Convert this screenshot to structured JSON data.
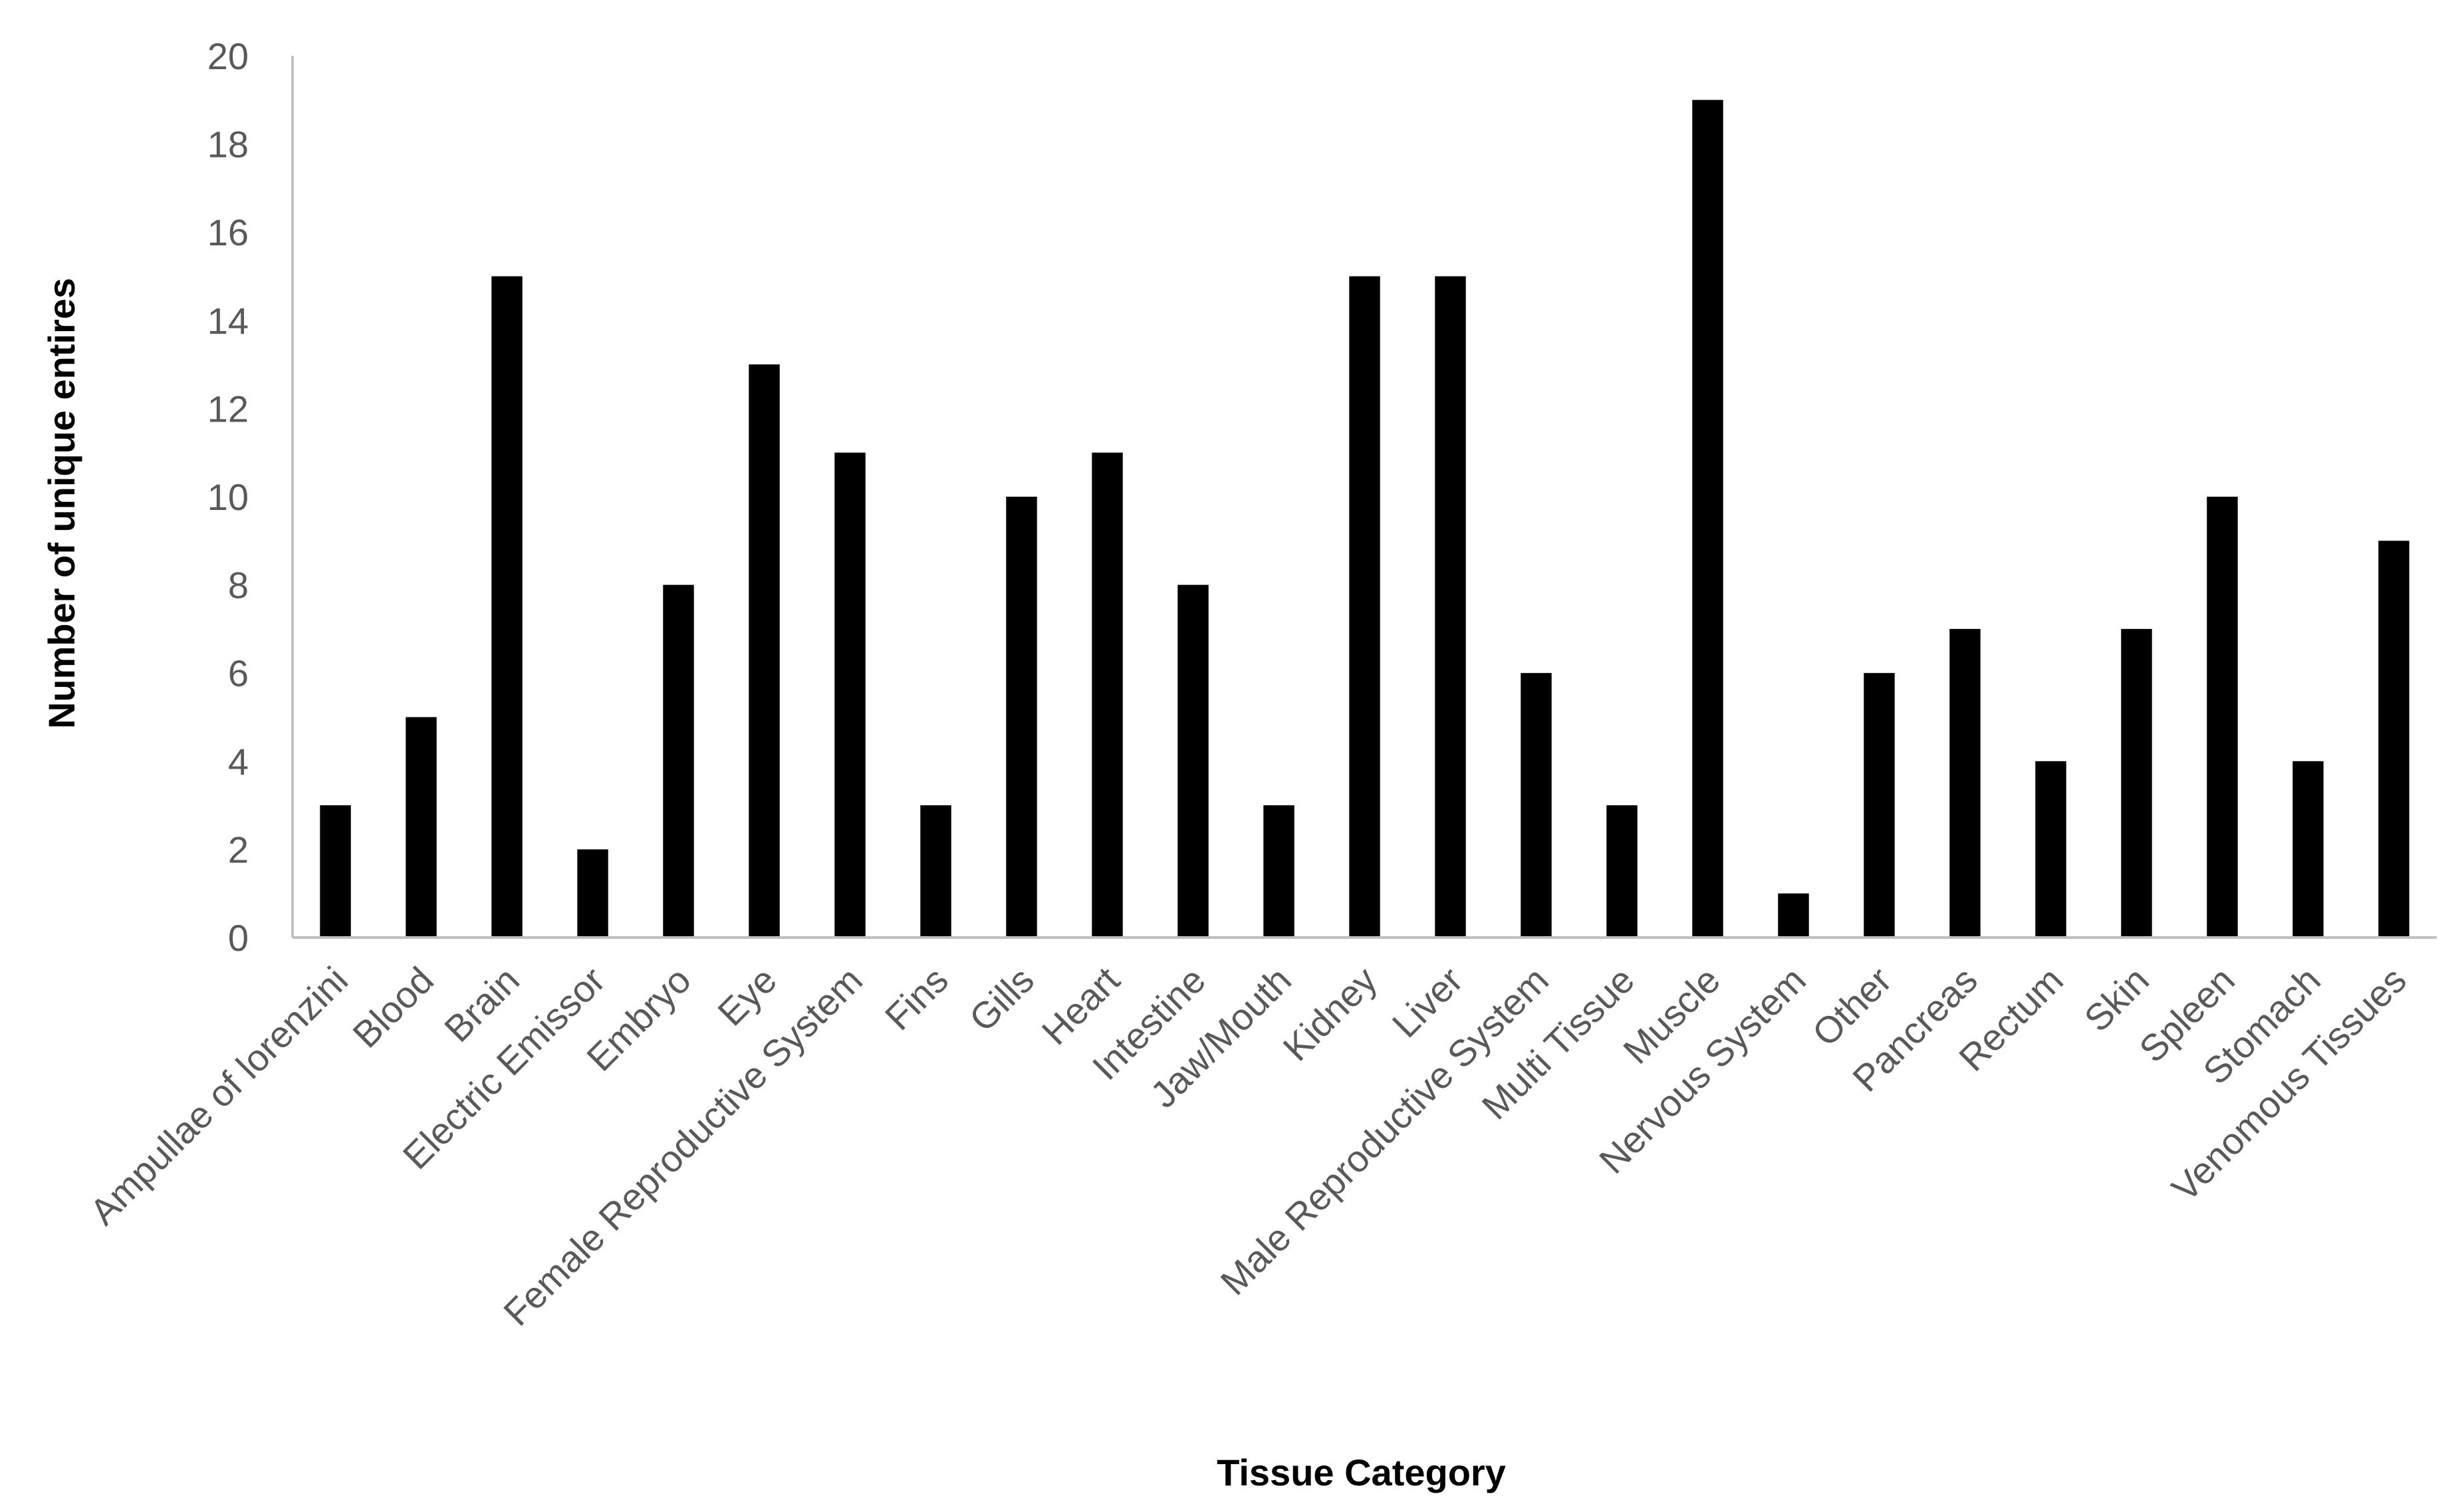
{
  "chart_data": {
    "type": "bar",
    "title": "",
    "xlabel": "Tissue Category",
    "ylabel": "Number of unique entires",
    "ylim": [
      0,
      20
    ],
    "yticks": [
      0,
      2,
      4,
      6,
      8,
      10,
      12,
      14,
      16,
      18,
      20
    ],
    "grid": false,
    "legend": "none",
    "bar_color": "#000000",
    "axis_color": "#bfbfbf",
    "tick_label_color": "#595959",
    "categories": [
      "Ampullae of lorenzini",
      "Blood",
      "Brain",
      "Electric Emissor",
      "Embryo",
      "Eye",
      "Female Reproductive System",
      "Fins",
      "Gills",
      "Heart",
      "Intestine",
      "Jaw/Mouth",
      "Kidney",
      "Liver",
      "Male Reproductive System",
      "Multi Tissue",
      "Muscle",
      "Nervous System",
      "Other",
      "Pancreas",
      "Rectum",
      "Skin",
      "Spleen",
      "Stomach",
      "Venomous Tissues"
    ],
    "values": [
      3,
      5,
      15,
      2,
      8,
      13,
      11,
      3,
      10,
      11,
      8,
      3,
      15,
      15,
      6,
      3,
      19,
      1,
      6,
      7,
      4,
      7,
      10,
      4,
      9
    ]
  }
}
